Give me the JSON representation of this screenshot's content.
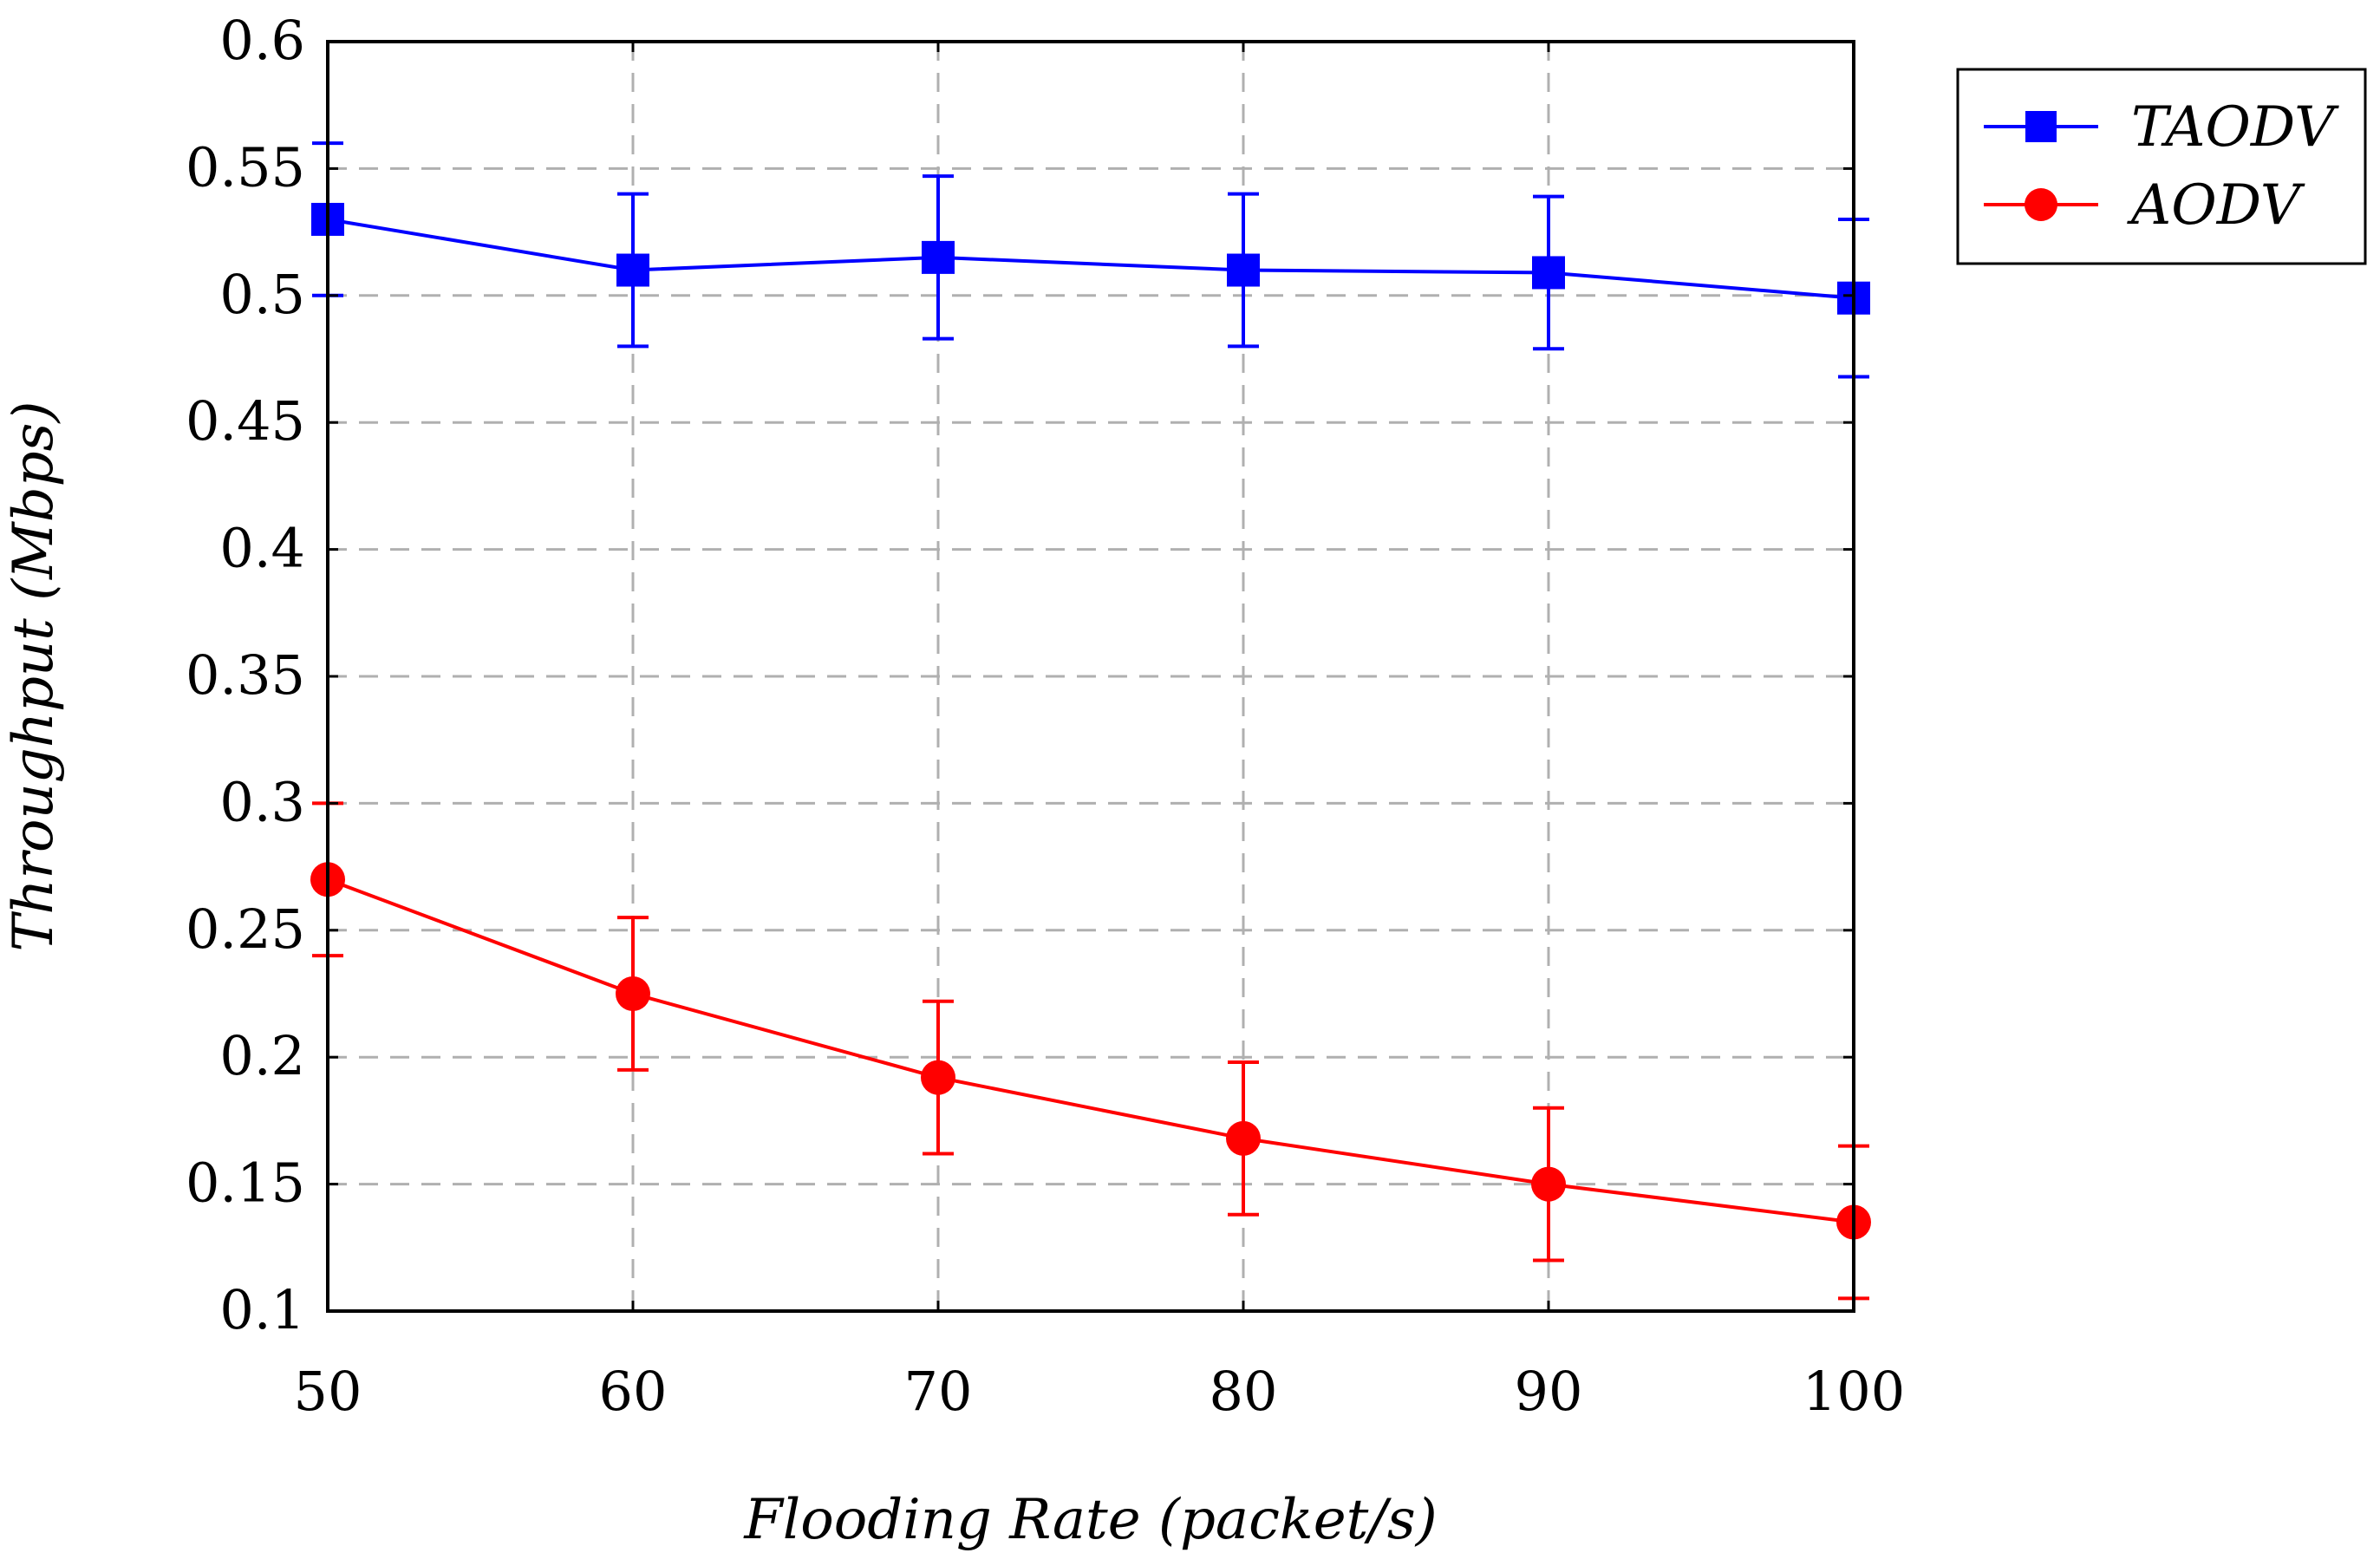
{
  "chart_data": {
    "type": "line",
    "title": "",
    "xlabel": "Flooding Rate (packet/s)",
    "ylabel": "Throughput (Mbps)",
    "x": [
      50,
      60,
      70,
      80,
      90,
      100
    ],
    "xlim": [
      50,
      100
    ],
    "ylim": [
      0.1,
      0.6
    ],
    "xticks": [
      "50",
      "60",
      "70",
      "80",
      "90",
      "100"
    ],
    "yticks": [
      "0.1",
      "0.15",
      "0.2",
      "0.25",
      "0.3",
      "0.35",
      "0.4",
      "0.45",
      "0.5",
      "0.55",
      "0.6"
    ],
    "grid": true,
    "legend_position": "outside-top-right",
    "series": [
      {
        "name": "TAODV",
        "color": "#0000ff",
        "marker": "square",
        "values": [
          0.53,
          0.51,
          0.515,
          0.51,
          0.509,
          0.499
        ],
        "error": [
          0.03,
          0.03,
          0.032,
          0.03,
          0.03,
          0.031
        ]
      },
      {
        "name": "AODV",
        "color": "#ff0000",
        "marker": "circle",
        "values": [
          0.27,
          0.225,
          0.192,
          0.168,
          0.15,
          0.135
        ],
        "error": [
          0.03,
          0.03,
          0.03,
          0.03,
          0.03,
          0.03
        ]
      }
    ]
  }
}
